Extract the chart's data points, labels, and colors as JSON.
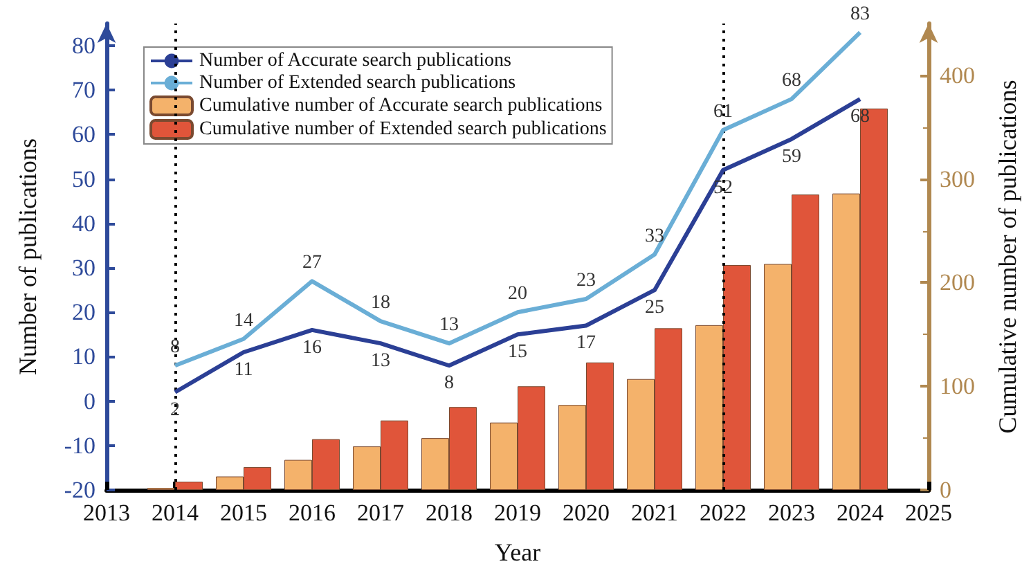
{
  "chart_data": {
    "type": "line",
    "xlabel": "Year",
    "ylabel": "Number of publications",
    "y2label": "Cumulative number of publications",
    "x": [
      2014,
      2015,
      2016,
      2017,
      2018,
      2019,
      2020,
      2021,
      2022,
      2023,
      2024
    ],
    "series": [
      {
        "name": "Number of Accurate search publications",
        "color": "#2b3f95",
        "values": [
          2,
          11,
          16,
          13,
          8,
          15,
          17,
          25,
          52,
          59,
          68
        ],
        "value_labels": [
          "2",
          "11",
          "16",
          "13",
          "8",
          "15",
          "17",
          "25",
          "52",
          "59",
          "68"
        ]
      },
      {
        "name": "Number of Extended search publications",
        "color": "#6aaed6",
        "values": [
          8,
          14,
          27,
          18,
          13,
          20,
          23,
          33,
          61,
          68,
          83
        ],
        "value_labels": [
          "8",
          "14",
          "27",
          "18",
          "13",
          "20",
          "23",
          "33",
          "61",
          "68",
          "83"
        ]
      },
      {
        "name": "Cumulative number of Accurate search publications",
        "type": "bar",
        "axis": "y2",
        "color": "#f4b26b",
        "values": [
          2,
          13,
          29,
          42,
          50,
          65,
          82,
          107,
          159,
          218,
          286
        ]
      },
      {
        "name": "Cumulative number of Extended search publications",
        "type": "bar",
        "axis": "y2",
        "color": "#e0553a",
        "values": [
          8,
          22,
          49,
          67,
          80,
          100,
          123,
          156,
          217,
          285,
          368
        ]
      }
    ],
    "xlim": [
      2013,
      2025
    ],
    "xticks": [
      2013,
      2014,
      2015,
      2016,
      2017,
      2018,
      2019,
      2020,
      2021,
      2022,
      2023,
      2024,
      2025
    ],
    "ylim": [
      -20,
      85
    ],
    "yticks": [
      -20,
      -10,
      0,
      10,
      20,
      30,
      40,
      50,
      60,
      70,
      80
    ],
    "y2lim": [
      0,
      450
    ],
    "y2ticks": [
      0,
      100,
      200,
      300,
      400
    ],
    "ref_lines": [
      {
        "axis": "x",
        "value": 2014,
        "color": "#000000",
        "line_style": "dotted"
      },
      {
        "axis": "x",
        "value": 2022,
        "color": "#000000",
        "line_style": "dotted"
      }
    ],
    "grid": false,
    "legend": "top left",
    "marker": "none"
  }
}
